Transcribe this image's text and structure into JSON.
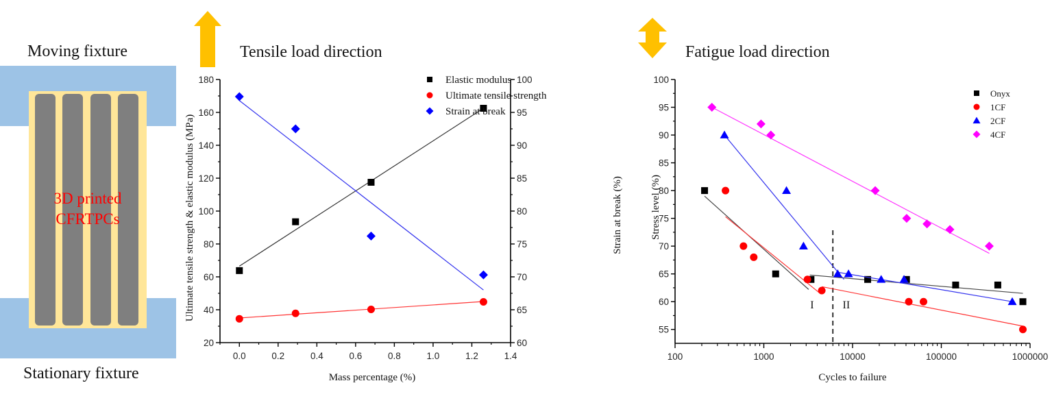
{
  "diagram": {
    "top_label": "Moving fixture",
    "bottom_label": "Stationary fixture",
    "specimen_label_line1": "3D printed",
    "specimen_label_line2": "CFRTPCs",
    "colors": {
      "fixture": "#9DC3E6",
      "matrix": "#FFE699",
      "fiber": "#7F7F7F",
      "specimen_text": "#FF0000",
      "arrow": "#FFC000"
    },
    "fiber_count": 4
  },
  "chart_data": [
    {
      "id": "tensile",
      "type": "scatter",
      "title": "Tensile load direction",
      "title_icon": "up-arrow-icon",
      "xlabel": "Mass percentage (%)",
      "ylabel": "Ultimate tensile strength  &  elastic modulus (MPa)",
      "y2label": "Strain at break (%)",
      "xlim": [
        -0.1,
        1.4
      ],
      "ylim": [
        20,
        180
      ],
      "y2lim": [
        60,
        100
      ],
      "xticks": [
        0.0,
        0.2,
        0.4,
        0.6,
        0.8,
        1.0,
        1.2,
        1.4
      ],
      "xtick_labels": [
        "0.0",
        "0.2",
        "0.4",
        "0.6",
        "0.8",
        "1.0",
        "1.2",
        "1.4"
      ],
      "yticks": [
        20,
        40,
        60,
        80,
        100,
        120,
        140,
        160,
        180
      ],
      "ytick_labels": [
        "20",
        "40",
        "60",
        "80",
        "100",
        "120",
        "140",
        "160",
        "180"
      ],
      "y2ticks": [
        60,
        65,
        70,
        75,
        80,
        85,
        90,
        95,
        100
      ],
      "y2tick_labels": [
        "60",
        "65",
        "70",
        "75",
        "80",
        "85",
        "90",
        "95",
        "100"
      ],
      "grid": false,
      "legend_position": "top-right",
      "series": [
        {
          "name": "Elastic modulus",
          "marker": "square",
          "color": "#000000",
          "axis": "left",
          "x": [
            0.0,
            0.29,
            0.68,
            1.26
          ],
          "y": [
            63.8,
            93.5,
            117.5,
            162.5
          ],
          "fit": {
            "x": [
              0.0,
              1.26
            ],
            "y": [
              66.5,
              162.5
            ],
            "color": "#333333"
          }
        },
        {
          "name": "Ultimate tensile strength",
          "marker": "circle",
          "color": "#FF0000",
          "axis": "left",
          "x": [
            0.0,
            0.29,
            0.68,
            1.26
          ],
          "y": [
            34.5,
            37.8,
            40.2,
            44.8
          ],
          "fit": {
            "x": [
              0.0,
              1.26
            ],
            "y": [
              35.0,
              45.0
            ],
            "color": "#FF3333"
          }
        },
        {
          "name": "Strain at break",
          "marker": "diamond",
          "color": "#0000FF",
          "axis": "right",
          "x": [
            0.0,
            0.29,
            0.68,
            1.26
          ],
          "y": [
            97.4,
            92.5,
            76.2,
            70.3
          ],
          "fit": {
            "x": [
              0.0,
              1.26
            ],
            "y": [
              96.8,
              68.0
            ],
            "color": "#3333EE"
          }
        }
      ]
    },
    {
      "id": "fatigue",
      "type": "scatter",
      "title": "Fatigue load direction",
      "title_icon": "up-down-arrow-icon",
      "xlabel": "Cycles to failure",
      "ylabel": "Stress level (%)",
      "xscale": "log",
      "xlim": [
        100,
        1000000
      ],
      "ylim": [
        52.5,
        100
      ],
      "xticks": [
        100,
        1000,
        10000,
        100000,
        1000000
      ],
      "xtick_labels": [
        "100",
        "1000",
        "10000",
        "100000",
        "1000000"
      ],
      "yticks": [
        55,
        60,
        65,
        70,
        75,
        80,
        85,
        90,
        95,
        100
      ],
      "ytick_labels": [
        "55",
        "60",
        "65",
        "70",
        "75",
        "80",
        "85",
        "90",
        "95",
        "100"
      ],
      "grid": false,
      "legend_position": "top-right",
      "regions": {
        "divider_x": 6000,
        "labels": [
          {
            "text": "I",
            "x": 3500,
            "y": 59.8
          },
          {
            "text": "II",
            "x": 8500,
            "y": 59.8
          }
        ]
      },
      "series": [
        {
          "name": "Onyx",
          "marker": "square",
          "color": "#000000",
          "x": [
            215,
            1360,
            3400,
            14800,
            40500,
            145000,
            433000,
            830000
          ],
          "y": [
            80,
            65,
            64,
            64,
            64,
            63,
            63,
            60
          ],
          "fits": [
            {
              "x": [
                215,
                3200
              ],
              "y": [
                79,
                62.2
              ]
            },
            {
              "x": [
                3300,
                830000
              ],
              "y": [
                64.8,
                61.5
              ]
            }
          ],
          "fit_color": "#444444"
        },
        {
          "name": "1CF",
          "marker": "circle",
          "color": "#FF0000",
          "x": [
            370,
            590,
            770,
            3100,
            4500,
            43000,
            63000,
            830000
          ],
          "y": [
            80,
            70,
            68,
            64,
            62,
            60,
            60,
            55
          ],
          "fits": [
            {
              "x": [
                370,
                4300
              ],
              "y": [
                75.3,
                61.5
              ]
            },
            {
              "x": [
                4500,
                830000
              ],
              "y": [
                62.7,
                55.6
              ]
            }
          ],
          "fit_color": "#FF3333"
        },
        {
          "name": "2CF",
          "marker": "triangle",
          "color": "#0000FF",
          "x": [
            360,
            1800,
            2800,
            6800,
            9000,
            21000,
            38000,
            630000
          ],
          "y": [
            90,
            80,
            70,
            65,
            65,
            64,
            64,
            60
          ],
          "fits": [
            {
              "x": [
                360,
                8000
              ],
              "y": [
                90,
                64.0
              ]
            },
            {
              "x": [
                6800,
                630000
              ],
              "y": [
                65.3,
                60.0
              ]
            }
          ],
          "fit_color": "#3333EE"
        },
        {
          "name": "4CF",
          "marker": "diamond",
          "color": "#FF00FF",
          "x": [
            260,
            930,
            1200,
            18000,
            40700,
            69000,
            125000,
            347000
          ],
          "y": [
            95,
            92,
            90,
            80,
            75,
            74,
            73,
            70
          ],
          "fits": [
            {
              "x": [
                260,
                347000
              ],
              "y": [
                95,
                68.7
              ]
            }
          ],
          "fit_color": "#FF33FF"
        }
      ]
    }
  ]
}
